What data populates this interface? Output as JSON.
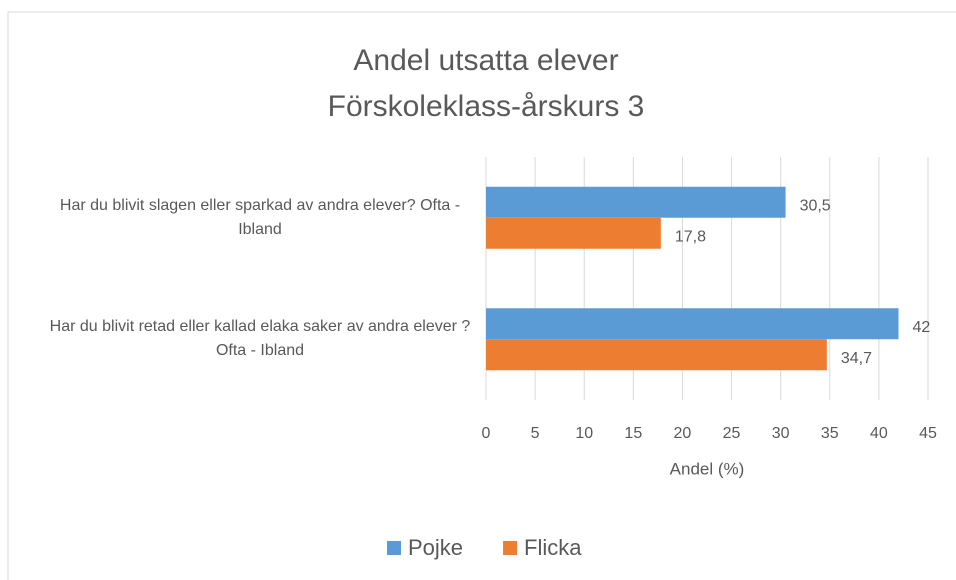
{
  "chart_data": {
    "type": "hbar",
    "title": [
      "Andel utsatta elever",
      "Förskoleklass-årskurs 3"
    ],
    "categories": [
      "Har du blivit slagen eller sparkad av andra elever? Ofta - Ibland",
      "Har du blivit retad eller kallad elaka saker av andra elever ? Ofta - Ibland"
    ],
    "series": [
      {
        "name": "Pojke",
        "color": "#5b9bd5",
        "values": [
          30.5,
          42
        ],
        "value_labels": [
          "30,5",
          "42"
        ]
      },
      {
        "name": "Flicka",
        "color": "#ed7d31",
        "values": [
          17.8,
          34.7
        ],
        "value_labels": [
          "17,8",
          "34,7"
        ]
      }
    ],
    "xlabel": "Andel (%)",
    "xlim": [
      0,
      45
    ],
    "xticks": [
      0,
      5,
      10,
      15,
      20,
      25,
      30,
      35,
      40,
      45
    ],
    "grid": true,
    "legend": "bottom"
  }
}
